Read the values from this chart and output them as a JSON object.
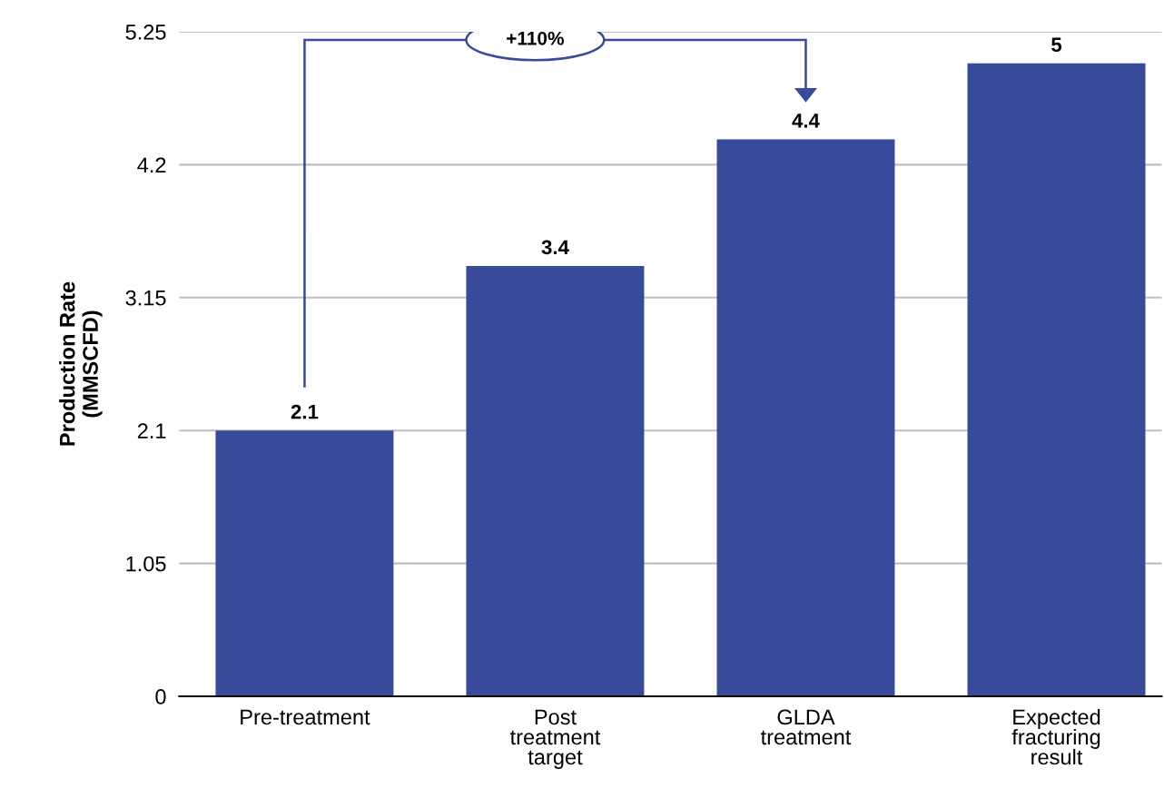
{
  "chart_data": {
    "type": "bar",
    "ylabel": "Production Rate\n(MMSCFD)",
    "categories": [
      "Pre-treatment",
      "Post\ntreatment\ntarget",
      "GLDA\ntreatment",
      "Expected\nfracturing\nresult"
    ],
    "values": [
      2.1,
      3.4,
      4.4,
      5
    ],
    "color": "#384a9a",
    "ylim": [
      0,
      5.25
    ],
    "yticks": [
      0,
      1.05,
      2.1,
      3.15,
      4.2,
      5.25
    ],
    "grid": "y",
    "data_labels": true,
    "annotations": [
      "+110%"
    ]
  }
}
